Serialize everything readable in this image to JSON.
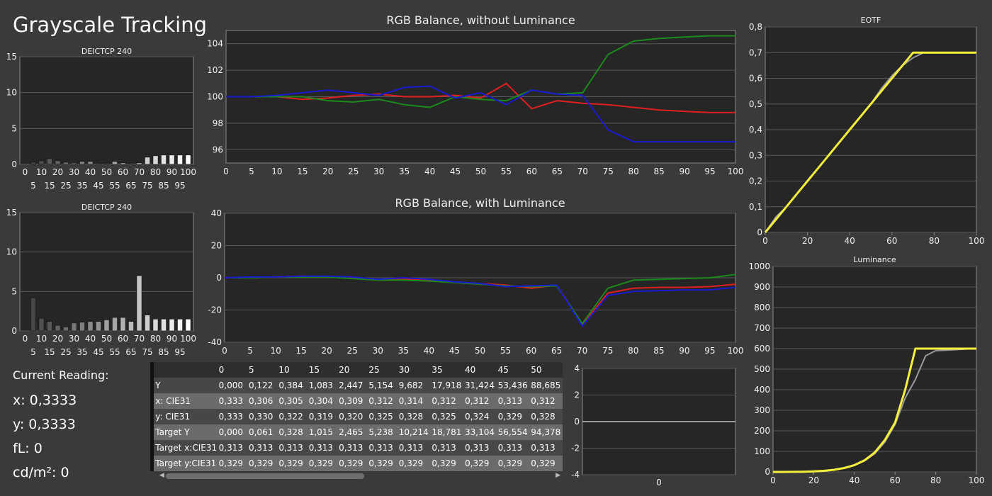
{
  "page_title": "Grayscale Tracking",
  "reading": {
    "label": "Current Reading:",
    "x": "x: 0,3333",
    "y": "y: 0,3333",
    "fl": "fL: 0",
    "cdm2": "cd/m²: 0"
  },
  "colors": {
    "red": "#e02020",
    "green": "#1a8a1a",
    "blue": "#1a1ad0",
    "yellow": "#f5f03c",
    "gray": "#9a9a9a",
    "bar": "#d8d8d8"
  },
  "table": {
    "columns": [
      "0",
      "5",
      "10",
      "15",
      "20",
      "25",
      "30",
      "35",
      "40",
      "45",
      "50"
    ],
    "rows": [
      {
        "label": "Y",
        "values": [
          "0,000",
          "0,122",
          "0,384",
          "1,083",
          "2,447",
          "5,154",
          "9,682",
          "17,918",
          "31,424",
          "53,436",
          "88,685"
        ]
      },
      {
        "label": "x: CIE31",
        "values": [
          "0,333",
          "0,306",
          "0,305",
          "0,304",
          "0,309",
          "0,312",
          "0,314",
          "0,312",
          "0,312",
          "0,313",
          "0,312"
        ]
      },
      {
        "label": "y: CIE31",
        "values": [
          "0,333",
          "0,330",
          "0,322",
          "0,319",
          "0,320",
          "0,325",
          "0,328",
          "0,325",
          "0,324",
          "0,329",
          "0,328"
        ]
      },
      {
        "label": "Target Y",
        "values": [
          "0,000",
          "0,061",
          "0,328",
          "1,015",
          "2,465",
          "5,238",
          "10,214",
          "18,781",
          "33,104",
          "56,554",
          "94,378"
        ]
      },
      {
        "label": "Target x:CIE31",
        "values": [
          "0,313",
          "0,313",
          "0,313",
          "0,313",
          "0,313",
          "0,313",
          "0,313",
          "0,313",
          "0,313",
          "0,313",
          "0,313"
        ]
      },
      {
        "label": "Target y:CIE31",
        "values": [
          "0,329",
          "0,329",
          "0,329",
          "0,329",
          "0,329",
          "0,329",
          "0,329",
          "0,329",
          "0,329",
          "0,329",
          "0,329"
        ]
      }
    ]
  },
  "chart_data": [
    {
      "id": "deictcp-top",
      "type": "bar",
      "title": "DEICTCP 240",
      "categories": [
        "0",
        "5",
        "10",
        "15",
        "20",
        "25",
        "30",
        "35",
        "40",
        "45",
        "50",
        "55",
        "60",
        "65",
        "70",
        "75",
        "80",
        "85",
        "90",
        "95",
        "100"
      ],
      "x_ticks_upper": [
        "0",
        "10",
        "20",
        "30",
        "40",
        "50",
        "60",
        "70",
        "80",
        "90",
        "100"
      ],
      "x_ticks_lower": [
        "5",
        "15",
        "25",
        "35",
        "45",
        "55",
        "65",
        "75",
        "85",
        "95"
      ],
      "y_ticks": [
        "0",
        "5",
        "10",
        "15"
      ],
      "ylim": [
        0,
        15
      ],
      "values": [
        0,
        0.3,
        0.5,
        0.8,
        0.5,
        0.3,
        0.2,
        0.4,
        0.4,
        0.1,
        0.1,
        0.4,
        0.2,
        0.1,
        0.2,
        1.0,
        1.2,
        1.3,
        1.3,
        1.3,
        1.3
      ]
    },
    {
      "id": "deictcp-bottom",
      "type": "bar",
      "title": "DEICTCP 240",
      "categories": [
        "0",
        "5",
        "10",
        "15",
        "20",
        "25",
        "30",
        "35",
        "40",
        "45",
        "50",
        "55",
        "60",
        "65",
        "70",
        "75",
        "80",
        "85",
        "90",
        "95",
        "100"
      ],
      "x_ticks_upper": [
        "0",
        "10",
        "20",
        "30",
        "40",
        "50",
        "60",
        "70",
        "80",
        "90",
        "100"
      ],
      "x_ticks_lower": [
        "5",
        "15",
        "25",
        "35",
        "45",
        "55",
        "65",
        "75",
        "85",
        "95"
      ],
      "y_ticks": [
        "0",
        "5",
        "10",
        "15"
      ],
      "ylim": [
        0,
        15
      ],
      "values": [
        0,
        4.2,
        1.6,
        1.2,
        0.7,
        0.5,
        1.0,
        1.1,
        1.2,
        1.2,
        1.4,
        1.7,
        1.7,
        1.2,
        7.0,
        2.0,
        1.5,
        1.5,
        1.5,
        1.5,
        1.5
      ]
    },
    {
      "id": "rgb-no-lum",
      "type": "line",
      "title": "RGB Balance, without Luminance",
      "x": [
        0,
        5,
        10,
        15,
        20,
        25,
        30,
        35,
        40,
        45,
        50,
        55,
        60,
        65,
        70,
        75,
        80,
        85,
        90,
        95,
        100
      ],
      "x_ticks": [
        "0",
        "5",
        "10",
        "15",
        "20",
        "25",
        "30",
        "35",
        "40",
        "45",
        "50",
        "55",
        "60",
        "65",
        "70",
        "75",
        "80",
        "85",
        "90",
        "95",
        "100"
      ],
      "y_ticks": [
        "96",
        "98",
        "100",
        "102",
        "104"
      ],
      "ylim": [
        95,
        105
      ],
      "series": [
        {
          "color": "red",
          "values": [
            100,
            100,
            100,
            99.8,
            99.9,
            100.1,
            100.2,
            100,
            100,
            100.1,
            99.9,
            101,
            99.1,
            99.7,
            99.5,
            99.4,
            99.2,
            99,
            98.9,
            98.8,
            98.8
          ]
        },
        {
          "color": "green",
          "values": [
            100,
            100,
            100,
            100,
            99.7,
            99.6,
            99.8,
            99.4,
            99.2,
            100,
            99.8,
            99.7,
            100.5,
            100.2,
            100.3,
            103.2,
            104.2,
            104.4,
            104.5,
            104.6,
            104.6
          ]
        },
        {
          "color": "blue",
          "values": [
            100,
            100,
            100.1,
            100.3,
            100.5,
            100.3,
            100.1,
            100.7,
            100.8,
            99.9,
            100.3,
            99.4,
            100.5,
            100.2,
            100.1,
            97.5,
            96.6,
            96.6,
            96.6,
            96.6,
            96.6
          ]
        }
      ]
    },
    {
      "id": "rgb-with-lum",
      "type": "line",
      "title": "RGB Balance, with Luminance",
      "x": [
        0,
        5,
        10,
        15,
        20,
        25,
        30,
        35,
        40,
        45,
        50,
        55,
        60,
        65,
        70,
        75,
        80,
        85,
        90,
        95,
        100
      ],
      "x_ticks": [
        "0",
        "5",
        "10",
        "15",
        "20",
        "25",
        "30",
        "35",
        "40",
        "45",
        "50",
        "55",
        "60",
        "65",
        "70",
        "75",
        "80",
        "85",
        "90",
        "95",
        "100"
      ],
      "y_ticks": [
        "-40",
        "-20",
        "0",
        "20",
        "40"
      ],
      "ylim": [
        -40,
        40
      ],
      "series": [
        {
          "color": "red",
          "values": [
            0,
            0,
            0.5,
            1,
            0.5,
            0,
            -1.5,
            -1,
            -1.5,
            -3,
            -3.5,
            -4.5,
            -6.5,
            -4.5,
            -29,
            -9.5,
            -6.5,
            -6,
            -6,
            -5.5,
            -4
          ]
        },
        {
          "color": "green",
          "values": [
            0,
            0,
            0.5,
            0.5,
            0.5,
            -0.5,
            -1.5,
            -1.5,
            -2,
            -3,
            -4,
            -5,
            -5.5,
            -5,
            -28.5,
            -6.5,
            -1.5,
            -1,
            -0.5,
            0,
            2
          ]
        },
        {
          "color": "blue",
          "values": [
            0,
            0.5,
            0.5,
            1,
            1,
            0.5,
            -1,
            0,
            -1,
            -2.5,
            -3.5,
            -5.5,
            -5,
            -4.5,
            -30,
            -11,
            -8.5,
            -8,
            -7.5,
            -7.5,
            -6
          ]
        }
      ]
    },
    {
      "id": "eotf",
      "type": "line",
      "title": "EOTF",
      "x": [
        0,
        5,
        10,
        15,
        20,
        25,
        30,
        35,
        40,
        45,
        50,
        55,
        60,
        65,
        70,
        75,
        80,
        85,
        90,
        95,
        100
      ],
      "x_ticks": [
        "0",
        "20",
        "40",
        "60",
        "80",
        "100"
      ],
      "y_ticks": [
        "0",
        "0,1",
        "0,2",
        "0,3",
        "0,4",
        "0,5",
        "0,6",
        "0,7",
        "0,8"
      ],
      "ylim": [
        0,
        0.8
      ],
      "series": [
        {
          "color": "yellow",
          "values": [
            0,
            0.05,
            0.1,
            0.15,
            0.2,
            0.25,
            0.3,
            0.35,
            0.4,
            0.45,
            0.5,
            0.55,
            0.6,
            0.65,
            0.7,
            0.7,
            0.7,
            0.7,
            0.7,
            0.7,
            0.7
          ]
        },
        {
          "color": "gray",
          "values": [
            0,
            0.06,
            0.1,
            0.15,
            0.2,
            0.25,
            0.3,
            0.35,
            0.4,
            0.45,
            0.5,
            0.56,
            0.61,
            0.65,
            0.68,
            0.7,
            0.7,
            0.7,
            0.7,
            0.7,
            0.7
          ]
        }
      ]
    },
    {
      "id": "luminance",
      "type": "line",
      "title": "Luminance",
      "x": [
        0,
        5,
        10,
        15,
        20,
        25,
        30,
        35,
        40,
        45,
        50,
        55,
        60,
        65,
        70,
        75,
        80,
        85,
        90,
        95,
        100
      ],
      "x_ticks": [
        "0",
        "20",
        "40",
        "60",
        "80",
        "100"
      ],
      "y_ticks": [
        "0",
        "100",
        "200",
        "300",
        "400",
        "500",
        "600",
        "700",
        "800",
        "900",
        "1000"
      ],
      "ylim": [
        0,
        1000
      ],
      "series": [
        {
          "color": "yellow",
          "values": [
            0,
            0.06,
            0.33,
            1,
            2.5,
            5.2,
            10.2,
            18.8,
            33.1,
            56.6,
            94.4,
            155,
            240,
            400,
            600,
            600,
            600,
            600,
            600,
            600,
            600
          ]
        },
        {
          "color": "gray",
          "values": [
            0,
            0.12,
            0.38,
            1.1,
            2.4,
            5.2,
            9.7,
            17.9,
            31.4,
            53.4,
            88.7,
            145,
            230,
            360,
            450,
            565,
            590,
            592,
            595,
            598,
            600
          ]
        }
      ]
    },
    {
      "id": "small-line",
      "type": "line",
      "title": "",
      "x": [
        0,
        1
      ],
      "x_ticks": [
        "0"
      ],
      "y_ticks": [
        "-4",
        "-2",
        "0",
        "2",
        "4"
      ],
      "ylim": [
        -4,
        4
      ],
      "series": [
        {
          "color": "gray",
          "values": [
            0,
            0
          ]
        }
      ]
    }
  ]
}
